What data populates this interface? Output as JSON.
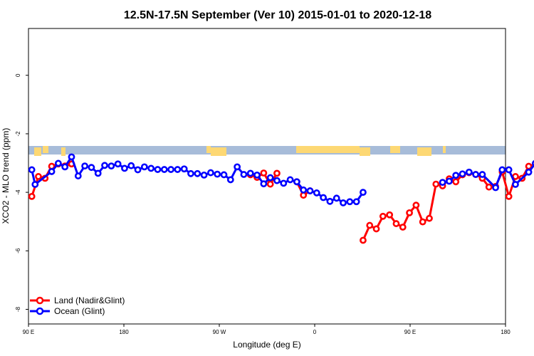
{
  "chart_data": {
    "type": "line",
    "title": "12.5N-17.5N September (Ver 10)   2015-01-01 to 2020-12-18",
    "xlabel": "Longitude (deg E)",
    "ylabel": "XCO2 - MLO trend (ppm)",
    "x_tick_labels": [
      "90 E",
      "180",
      "90 W",
      "0",
      "90 E",
      "180"
    ],
    "y_ticks": [
      0,
      -2,
      -4,
      -6,
      -8
    ],
    "y_tick_labels": [
      "0",
      "-2",
      "-4",
      "-6",
      "-8"
    ],
    "xlim_lon": [
      "90 E",
      "180 (after full wrap)"
    ],
    "ylim": [
      -8.5,
      1.6
    ],
    "grid": false,
    "legend_position": "bottom-left",
    "surface_band_colors": {
      "ocean": "#a7bcd9",
      "land": "#fdd874"
    },
    "series": [
      {
        "name": "Land (Nadir&Glint)",
        "color": "#ff0000",
        "segments": [
          {
            "lon": [
              92.5,
              97.5,
              102.5,
              107.5,
              112.5,
              117.5,
              122.5
            ],
            "values": [
              -4.14,
              -3.46,
              -3.52,
              -3.11,
              -3.03,
              -3.1,
              -3.03
            ]
          },
          {
            "lon": [
              -102.5,
              -97.5,
              -92.5,
              -87.5,
              -82.5
            ],
            "values": [
              -3.4,
              -3.49,
              -3.34,
              -3.72,
              -3.35
            ]
          },
          {
            "lon": [
              -67.5,
              -62.5,
              -57.5
            ],
            "values": [
              -3.64,
              -4.1,
              -3.95
            ]
          },
          {
            "lon": [
              -17.5,
              -12.5,
              -7.5,
              -2.5,
              2.5,
              7.5,
              12.5,
              17.5,
              22.5,
              27.5,
              32.5,
              37.5,
              42.5,
              47.5,
              52.5,
              57.5,
              62.5,
              67.5,
              72.5,
              77.5,
              82.5,
              87.5,
              92.5,
              97.5,
              102.5,
              107.5,
              112.5,
              117.5,
              122.5
            ],
            "values": [
              -5.64,
              -5.13,
              -5.25,
              -4.82,
              -4.77,
              -5.07,
              -5.19,
              -4.7,
              -4.44,
              -5.01,
              -4.89,
              -3.72,
              -3.78,
              -3.54,
              -3.64,
              -3.4,
              -3.33,
              -3.39,
              -3.52,
              -3.82,
              -3.8,
              -3.3,
              -4.14,
              -3.46,
              -3.52,
              -3.11,
              -3.03,
              -3.1,
              -3.03
            ]
          }
        ]
      },
      {
        "name": "Ocean (Glint)",
        "color": "#0000ff",
        "segments": [
          {
            "lon": [
              92.5,
              95,
              107.5,
              112.5,
              117.5,
              122.5,
              127.5,
              132.5,
              137.5,
              142.5,
              147.5,
              152.5,
              157.5,
              162.5,
              167.5,
              172.5,
              177.5,
              -177.5,
              -172.5,
              -167.5,
              -162.5,
              -157.5,
              -152.5,
              -147.5,
              -142.5,
              -137.5,
              -132.5,
              -127.5,
              -122.5,
              -117.5,
              -112.5,
              -107.5,
              -102.5,
              -97.5,
              -92.5,
              -87.5,
              -82.5,
              -77.5,
              -72.5,
              -67.5,
              -62.5,
              -57.5,
              -52.5,
              -47.5,
              -42.5,
              -37.5,
              -32.5,
              -27.5,
              -22.5,
              -17.5
            ],
            "values": [
              -3.23,
              -3.73,
              -3.29,
              -3.01,
              -3.13,
              -2.79,
              -3.44,
              -3.1,
              -3.15,
              -3.35,
              -3.08,
              -3.1,
              -3.03,
              -3.18,
              -3.09,
              -3.23,
              -3.13,
              -3.18,
              -3.22,
              -3.22,
              -3.22,
              -3.22,
              -3.2,
              -3.36,
              -3.36,
              -3.41,
              -3.33,
              -3.38,
              -3.4,
              -3.57,
              -3.13,
              -3.39,
              -3.35,
              -3.41,
              -3.71,
              -3.5,
              -3.6,
              -3.69,
              -3.57,
              -3.64,
              -3.92,
              -3.95,
              -4.02,
              -4.18,
              -4.31,
              -4.2,
              -4.36,
              -4.32,
              -4.32,
              -4.0
            ]
          },
          {
            "lon": [
              42.5,
              47.5,
              52.5,
              57.5,
              62.5,
              67.5,
              72.5,
              82.5,
              87.5,
              92.5,
              97.5,
              107.5,
              112.5,
              117.5,
              122.5,
              127.5,
              132.5,
              137.5,
              142.5,
              147.5,
              152.5,
              157.5,
              162.5,
              167.5,
              172.5,
              177.5
            ],
            "values": [
              -3.66,
              -3.62,
              -3.42,
              -3.37,
              -3.31,
              -3.39,
              -3.39,
              -3.84,
              -3.23,
              -3.23,
              -3.73,
              -3.31,
              -3.01,
              -3.13,
              -2.79,
              -3.44,
              -3.11,
              -3.15,
              -3.35,
              -3.1,
              -3.1,
              -3.03,
              -3.19,
              -3.09,
              -3.23,
              -3.13
            ]
          }
        ]
      }
    ]
  }
}
